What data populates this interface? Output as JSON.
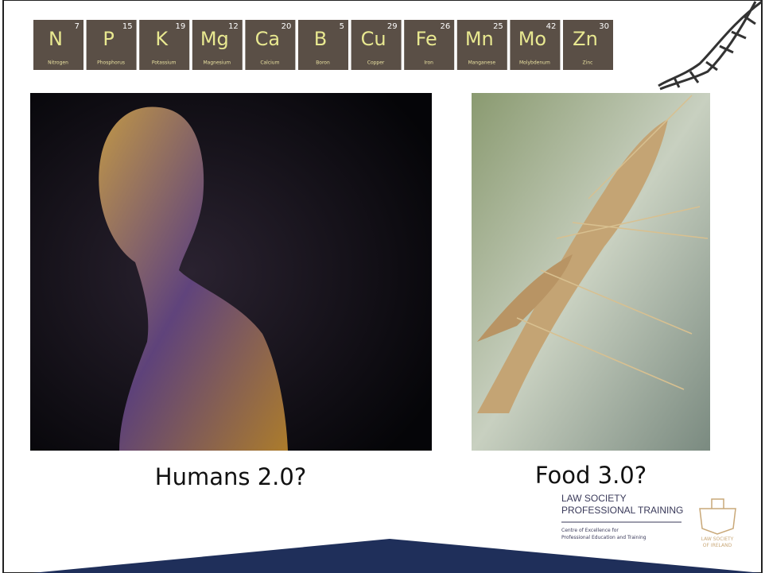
{
  "elements": [
    {
      "symbol": "N",
      "number": 7,
      "name": "Nitrogen"
    },
    {
      "symbol": "P",
      "number": 15,
      "name": "Phosphorus"
    },
    {
      "symbol": "K",
      "number": 19,
      "name": "Potassium"
    },
    {
      "symbol": "Mg",
      "number": 12,
      "name": "Magnesium"
    },
    {
      "symbol": "Ca",
      "number": 20,
      "name": "Calcium"
    },
    {
      "symbol": "B",
      "number": 5,
      "name": "Boron"
    },
    {
      "symbol": "Cu",
      "number": 29,
      "name": "Copper"
    },
    {
      "symbol": "Fe",
      "number": 26,
      "name": "Iron"
    },
    {
      "symbol": "Mn",
      "number": 25,
      "name": "Manganese"
    },
    {
      "symbol": "Mo",
      "number": 42,
      "name": "Molybdenum"
    },
    {
      "symbol": "Zn",
      "number": 30,
      "name": "Zinc"
    }
  ],
  "captions": {
    "left": "Humans 2.0?",
    "right": "Food 3.0?"
  },
  "logo": {
    "line1": "LAW SOCIETY",
    "line2": "PROFESSIONAL TRAINING",
    "line3": "Centre of Excellence for",
    "line4": "Professional Education and Training",
    "crest1": "LAW SOCIETY",
    "crest2": "OF IRELAND"
  }
}
